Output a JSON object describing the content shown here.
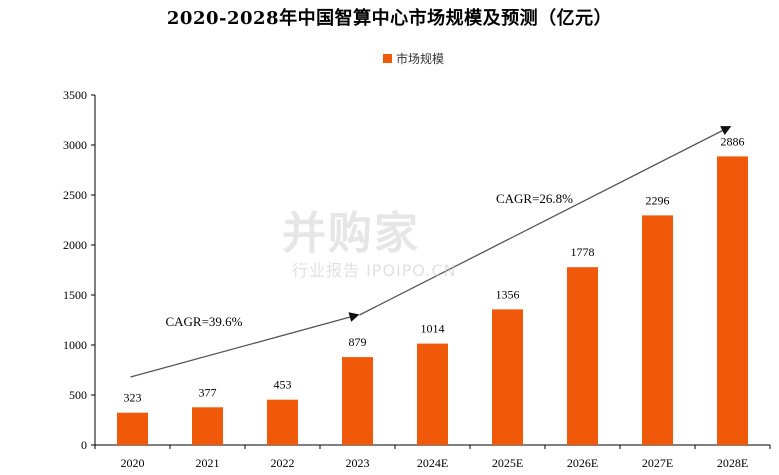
{
  "chart_data": {
    "type": "bar",
    "title": "2020-2028年中国智算中心市场规模及预测（亿元）",
    "categories": [
      "2020",
      "2021",
      "2022",
      "2023",
      "2024E",
      "2025E",
      "2026E",
      "2027E",
      "2028E"
    ],
    "series": [
      {
        "name": "市场规模",
        "values": [
          323,
          377,
          453,
          879,
          1014,
          1356,
          1778,
          2296,
          2886
        ]
      }
    ],
    "ylim": [
      0,
      3500
    ],
    "yticks": [
      0,
      500,
      1000,
      1500,
      2000,
      2500,
      3000,
      3500
    ],
    "grid": false,
    "legend_position": "top-center",
    "colors": {
      "bar": "#f0580a",
      "arrow": "#555555",
      "axis": "#000000"
    },
    "annotations": [
      {
        "text": "CAGR=39.6%",
        "from": {
          "x": "2020",
          "y": 680
        },
        "to": {
          "x": "2023",
          "y": 1300
        }
      },
      {
        "text": "CAGR=26.8%",
        "from": {
          "x": "2023",
          "y": 1300
        },
        "to": {
          "x": "2028E",
          "y": 3180
        }
      }
    ]
  },
  "watermark": {
    "main": "并购家",
    "sub": "行业报告 IPOIPO.CN"
  }
}
